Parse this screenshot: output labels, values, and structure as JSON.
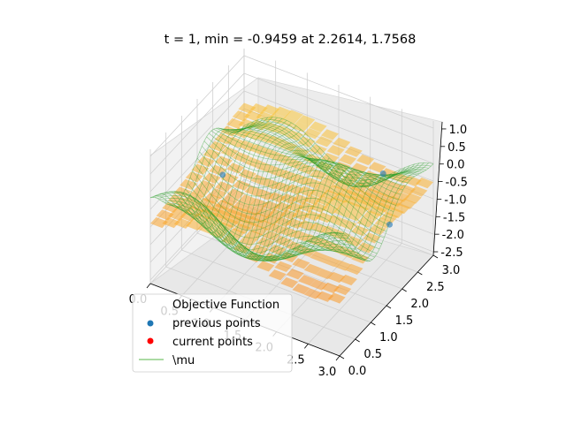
{
  "chart_data": {
    "type": "surface3d",
    "title": "t = 1, min = -0.9459 at 2.2614, 1.7568",
    "x_ticks": [
      "0.0",
      "0.5",
      "1.0",
      "1.5",
      "2.0",
      "2.5",
      "3.0"
    ],
    "y_ticks": [
      "0.0",
      "0.5",
      "1.0",
      "1.5",
      "2.0",
      "2.5",
      "3.0"
    ],
    "z_ticks": [
      "1.0",
      "0.5",
      "0.0",
      "-0.5",
      "-1.0",
      "-1.5",
      "-2.0",
      "-2.5"
    ],
    "xlim": [
      0,
      3.0
    ],
    "ylim": [
      0,
      3.0
    ],
    "zlim": [
      -2.6,
      1.2
    ],
    "grid": true,
    "legend_position": "lower-left",
    "legend": [
      {
        "label": "Objective Function",
        "marker": "none"
      },
      {
        "label": "previous points",
        "marker": "dot",
        "color": "#1f77b4"
      },
      {
        "label": "current points",
        "marker": "dot",
        "color": "#ff0000"
      },
      {
        "label": "\\mu",
        "marker": "line",
        "color": "#8fcf86"
      }
    ],
    "previous_points": [
      {
        "x": 2.6,
        "y": 2.2,
        "z": 0.2
      },
      {
        "x": 3.0,
        "y": 1.6,
        "z": -0.4
      },
      {
        "x": 0.7,
        "y": 0.9,
        "z": 0.1
      }
    ],
    "colors": {
      "surface": "#f4a300",
      "mesh": "#2ca02c",
      "previous": "#1f77b4",
      "current": "#ff0000"
    }
  }
}
